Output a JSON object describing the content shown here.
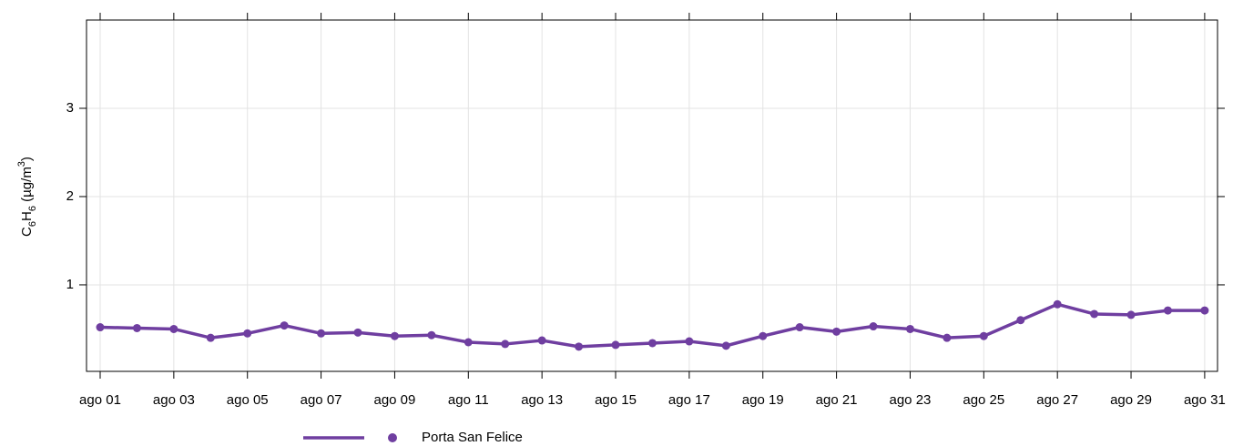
{
  "chart_data": {
    "type": "line",
    "ylabel": [
      "C",
      "6",
      "H",
      "6",
      " (µg/m",
      "3",
      ")"
    ],
    "categories": [
      "ago 01",
      null,
      "ago 03",
      null,
      "ago 05",
      null,
      "ago 07",
      null,
      "ago 09",
      null,
      "ago 11",
      null,
      "ago 13",
      null,
      "ago 15",
      null,
      "ago 17",
      null,
      "ago 19",
      null,
      "ago 21",
      null,
      "ago 23",
      null,
      "ago 25",
      null,
      "ago 27",
      null,
      "ago 29",
      null,
      "ago 31"
    ],
    "series": [
      {
        "name": "Porta San Felice",
        "color": "#6f3ea0",
        "values": [
          0.52,
          0.51,
          0.5,
          0.4,
          0.45,
          0.54,
          0.45,
          0.46,
          0.42,
          0.43,
          0.35,
          0.33,
          0.37,
          0.3,
          0.32,
          0.34,
          0.36,
          0.31,
          0.42,
          0.52,
          0.47,
          0.53,
          0.5,
          0.4,
          0.42,
          0.6,
          0.78,
          0.67,
          0.66,
          0.71,
          0.71
        ]
      }
    ],
    "ylim": [
      0.02,
      4.0
    ],
    "yticks": [
      1,
      2,
      3
    ],
    "grid": true,
    "legend": "bottom"
  }
}
